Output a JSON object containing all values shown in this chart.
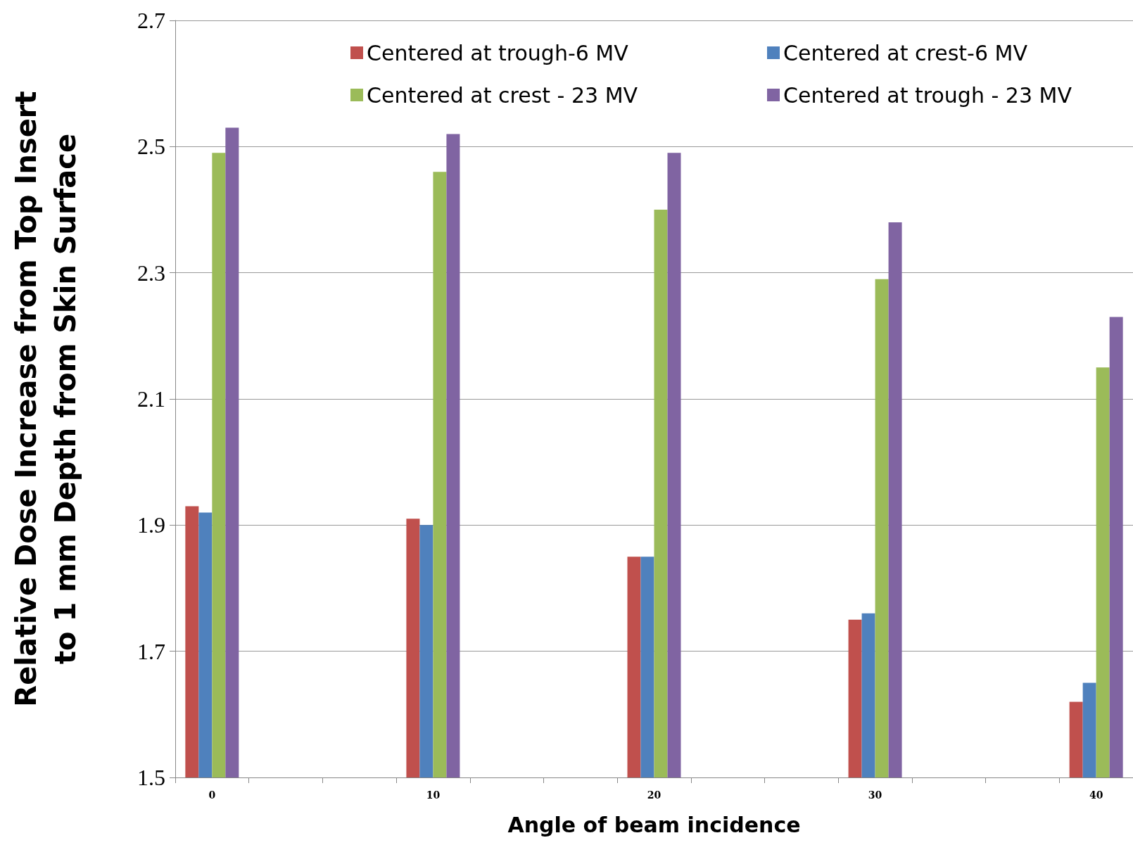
{
  "chart_data": {
    "type": "bar",
    "xlabel": "Angle of beam incidence",
    "ylabel": "Relative Dose Increase from Top Insert\nto 1 mm Depth from Skin Surface",
    "categories": [
      "0",
      null,
      null,
      "10",
      null,
      null,
      "20",
      null,
      null,
      "30",
      null,
      null,
      "40"
    ],
    "series": [
      {
        "name": "Centered at trough-6 MV",
        "color": "#c0504d",
        "values": [
          1.93,
          null,
          null,
          1.91,
          null,
          null,
          1.85,
          null,
          null,
          1.75,
          null,
          null,
          1.62
        ]
      },
      {
        "name": "Centered at crest-6 MV",
        "color": "#4f81bd",
        "values": [
          1.92,
          null,
          null,
          1.9,
          null,
          null,
          1.85,
          null,
          null,
          1.76,
          null,
          null,
          1.65
        ]
      },
      {
        "name": "Centered at crest - 23 MV",
        "color": "#9bbb59",
        "values": [
          2.49,
          null,
          null,
          2.46,
          null,
          null,
          2.4,
          null,
          null,
          2.29,
          null,
          null,
          2.15
        ]
      },
      {
        "name": "Centered at trough - 23 MV",
        "color": "#8064a2",
        "values": [
          2.53,
          null,
          null,
          2.52,
          null,
          null,
          2.49,
          null,
          null,
          2.38,
          null,
          null,
          2.23
        ]
      }
    ],
    "ylim": [
      1.5,
      2.7
    ],
    "yticks": [
      1.5,
      1.7,
      1.9,
      2.1,
      2.3,
      2.5,
      2.7
    ],
    "grid": "y",
    "legend": "top right"
  }
}
